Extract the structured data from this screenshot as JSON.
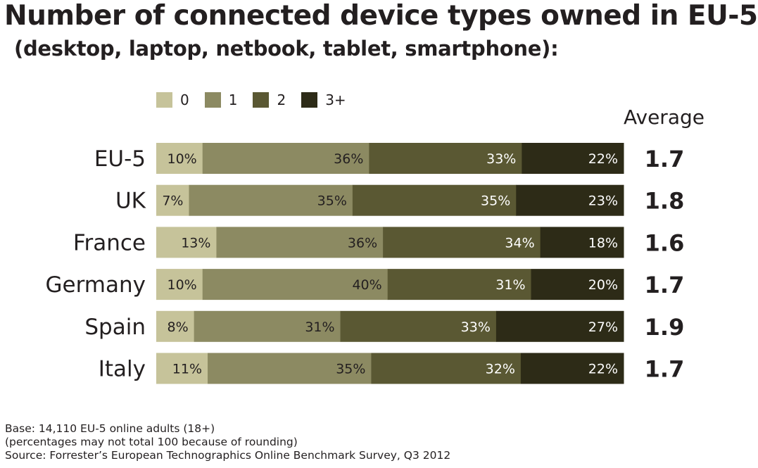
{
  "chart_data": {
    "type": "bar",
    "orientation": "horizontal",
    "stacked": true,
    "title": "Number of connected device types owned in EU-5",
    "subtitle": "(desktop, laptop, netbook, tablet, smartphone):",
    "categories": [
      "EU-5",
      "UK",
      "France",
      "Germany",
      "Spain",
      "Italy"
    ],
    "series": [
      {
        "name": "0",
        "color": "#c6c39a",
        "label_color": "#231f20",
        "values": [
          10,
          7,
          13,
          10,
          8,
          11
        ]
      },
      {
        "name": "1",
        "color": "#8c8a62",
        "label_color": "#231f20",
        "values": [
          36,
          35,
          36,
          40,
          31,
          35
        ]
      },
      {
        "name": "2",
        "color": "#5a5833",
        "label_color": "#ffffff",
        "values": [
          33,
          35,
          34,
          31,
          33,
          32
        ]
      },
      {
        "name": "3+",
        "color": "#2d2b17",
        "label_color": "#ffffff",
        "values": [
          22,
          23,
          18,
          20,
          27,
          22
        ]
      }
    ],
    "value_suffix": "%",
    "average_header": "Average",
    "averages": [
      "1.7",
      "1.8",
      "1.6",
      "1.7",
      "1.9",
      "1.7"
    ],
    "legend_position": "top"
  },
  "footer": {
    "base": "Base: 14,110 EU-5 online adults (18+)",
    "note": "(percentages may not total 100 because of rounding)",
    "source": "Source: Forrester’s European Technographics Online Benchmark Survey, Q3 2012"
  }
}
